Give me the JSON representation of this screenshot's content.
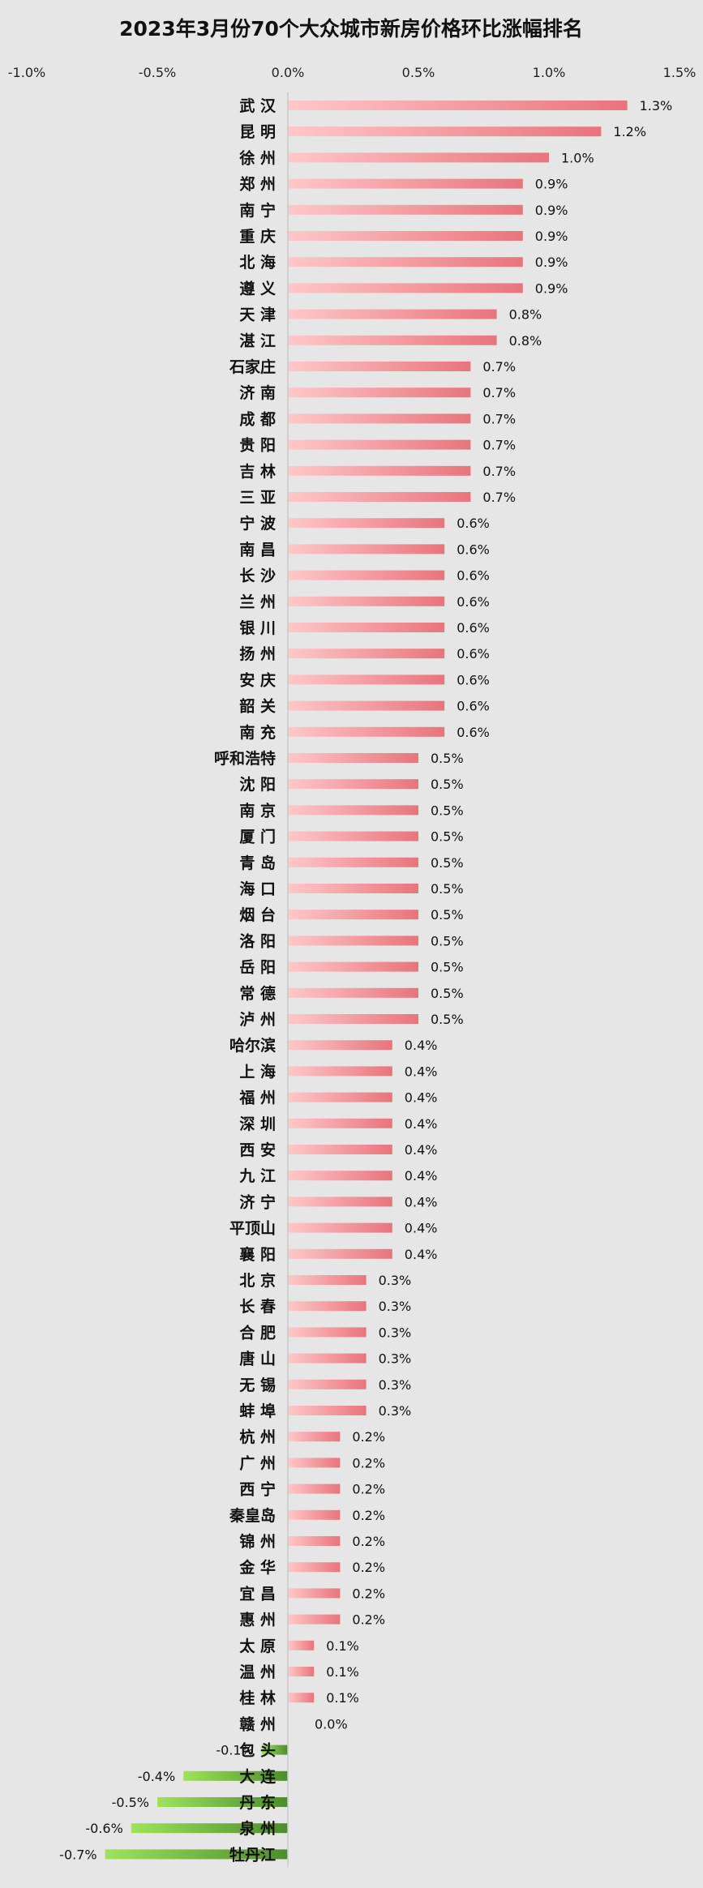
{
  "chart_data": {
    "type": "bar",
    "orientation": "horizontal",
    "title": "2023年3月份70个大众城市新房价格环比涨幅排名",
    "xlabel": "",
    "ylabel": "",
    "xlim": [
      -1.0,
      1.5
    ],
    "x_ticks": [
      "-1.0%",
      "-0.5%",
      "0.0%",
      "0.5%",
      "1.0%",
      "1.5%"
    ],
    "x_tick_values": [
      -1.0,
      -0.5,
      0.0,
      0.5,
      1.0,
      1.5
    ],
    "grid": false,
    "legend": "none",
    "colors": {
      "background": "#e6e6e6",
      "positive_light": "#ffc8c8",
      "positive_dark": "#e8747c",
      "negative_light": "#9de45a",
      "negative_dark": "#4e8c2c"
    },
    "categories": [
      "武汉",
      "昆明",
      "徐州",
      "郑州",
      "南宁",
      "重庆",
      "北海",
      "遵义",
      "天津",
      "湛江",
      "石家庄",
      "济南",
      "成都",
      "贵阳",
      "吉林",
      "三亚",
      "宁波",
      "南昌",
      "长沙",
      "兰州",
      "银川",
      "扬州",
      "安庆",
      "韶关",
      "南充",
      "呼和浩特",
      "沈阳",
      "南京",
      "厦门",
      "青岛",
      "海口",
      "烟台",
      "洛阳",
      "岳阳",
      "常德",
      "泸州",
      "哈尔滨",
      "上海",
      "福州",
      "深圳",
      "西安",
      "九江",
      "济宁",
      "平顶山",
      "襄阳",
      "北京",
      "长春",
      "合肥",
      "唐山",
      "无锡",
      "蚌埠",
      "杭州",
      "广州",
      "西宁",
      "秦皇岛",
      "锦州",
      "金华",
      "宜昌",
      "惠州",
      "太原",
      "温州",
      "桂林",
      "赣州",
      "包头",
      "大连",
      "丹东",
      "泉州",
      "牡丹江"
    ],
    "labels": [
      "武 汉",
      "昆 明",
      "徐 州",
      "郑 州",
      "南 宁",
      "重 庆",
      "北 海",
      "遵 义",
      "天 津",
      "湛 江",
      "石家庄",
      "济 南",
      "成 都",
      "贵 阳",
      "吉 林",
      "三 亚",
      "宁 波",
      "南 昌",
      "长 沙",
      "兰 州",
      "银 川",
      "扬 州",
      "安 庆",
      "韶 关",
      "南 充",
      "呼和浩特",
      "沈 阳",
      "南 京",
      "厦 门",
      "青 岛",
      "海 口",
      "烟 台",
      "洛 阳",
      "岳 阳",
      "常 德",
      "泸 州",
      "哈尔滨",
      "上 海",
      "福 州",
      "深 圳",
      "西 安",
      "九 江",
      "济 宁",
      "平顶山",
      "襄 阳",
      "北 京",
      "长 春",
      "合 肥",
      "唐 山",
      "无 锡",
      "蚌 埠",
      "杭 州",
      "广 州",
      "西 宁",
      "秦皇岛",
      "锦 州",
      "金 华",
      "宜 昌",
      "惠 州",
      "太 原",
      "温 州",
      "桂 林",
      "赣 州",
      "包 头",
      "大 连",
      "丹 东",
      "泉 州",
      "牡丹江"
    ],
    "values": [
      1.3,
      1.2,
      1.0,
      0.9,
      0.9,
      0.9,
      0.9,
      0.9,
      0.8,
      0.8,
      0.7,
      0.7,
      0.7,
      0.7,
      0.7,
      0.7,
      0.6,
      0.6,
      0.6,
      0.6,
      0.6,
      0.6,
      0.6,
      0.6,
      0.6,
      0.5,
      0.5,
      0.5,
      0.5,
      0.5,
      0.5,
      0.5,
      0.5,
      0.5,
      0.5,
      0.5,
      0.4,
      0.4,
      0.4,
      0.4,
      0.4,
      0.4,
      0.4,
      0.4,
      0.4,
      0.3,
      0.3,
      0.3,
      0.3,
      0.3,
      0.3,
      0.2,
      0.2,
      0.2,
      0.2,
      0.2,
      0.2,
      0.2,
      0.2,
      0.1,
      0.1,
      0.1,
      0.0,
      -0.1,
      -0.4,
      -0.5,
      -0.6,
      -0.7
    ],
    "value_labels": [
      "1.3%",
      "1.2%",
      "1.0%",
      "0.9%",
      "0.9%",
      "0.9%",
      "0.9%",
      "0.9%",
      "0.8%",
      "0.8%",
      "0.7%",
      "0.7%",
      "0.7%",
      "0.7%",
      "0.7%",
      "0.7%",
      "0.6%",
      "0.6%",
      "0.6%",
      "0.6%",
      "0.6%",
      "0.6%",
      "0.6%",
      "0.6%",
      "0.6%",
      "0.5%",
      "0.5%",
      "0.5%",
      "0.5%",
      "0.5%",
      "0.5%",
      "0.5%",
      "0.5%",
      "0.5%",
      "0.5%",
      "0.5%",
      "0.4%",
      "0.4%",
      "0.4%",
      "0.4%",
      "0.4%",
      "0.4%",
      "0.4%",
      "0.4%",
      "0.4%",
      "0.3%",
      "0.3%",
      "0.3%",
      "0.3%",
      "0.3%",
      "0.3%",
      "0.2%",
      "0.2%",
      "0.2%",
      "0.2%",
      "0.2%",
      "0.2%",
      "0.2%",
      "0.2%",
      "0.1%",
      "0.1%",
      "0.1%",
      "0.0%",
      "-0.1%",
      "-0.4%",
      "-0.5%",
      "-0.6%",
      "-0.7%"
    ]
  }
}
